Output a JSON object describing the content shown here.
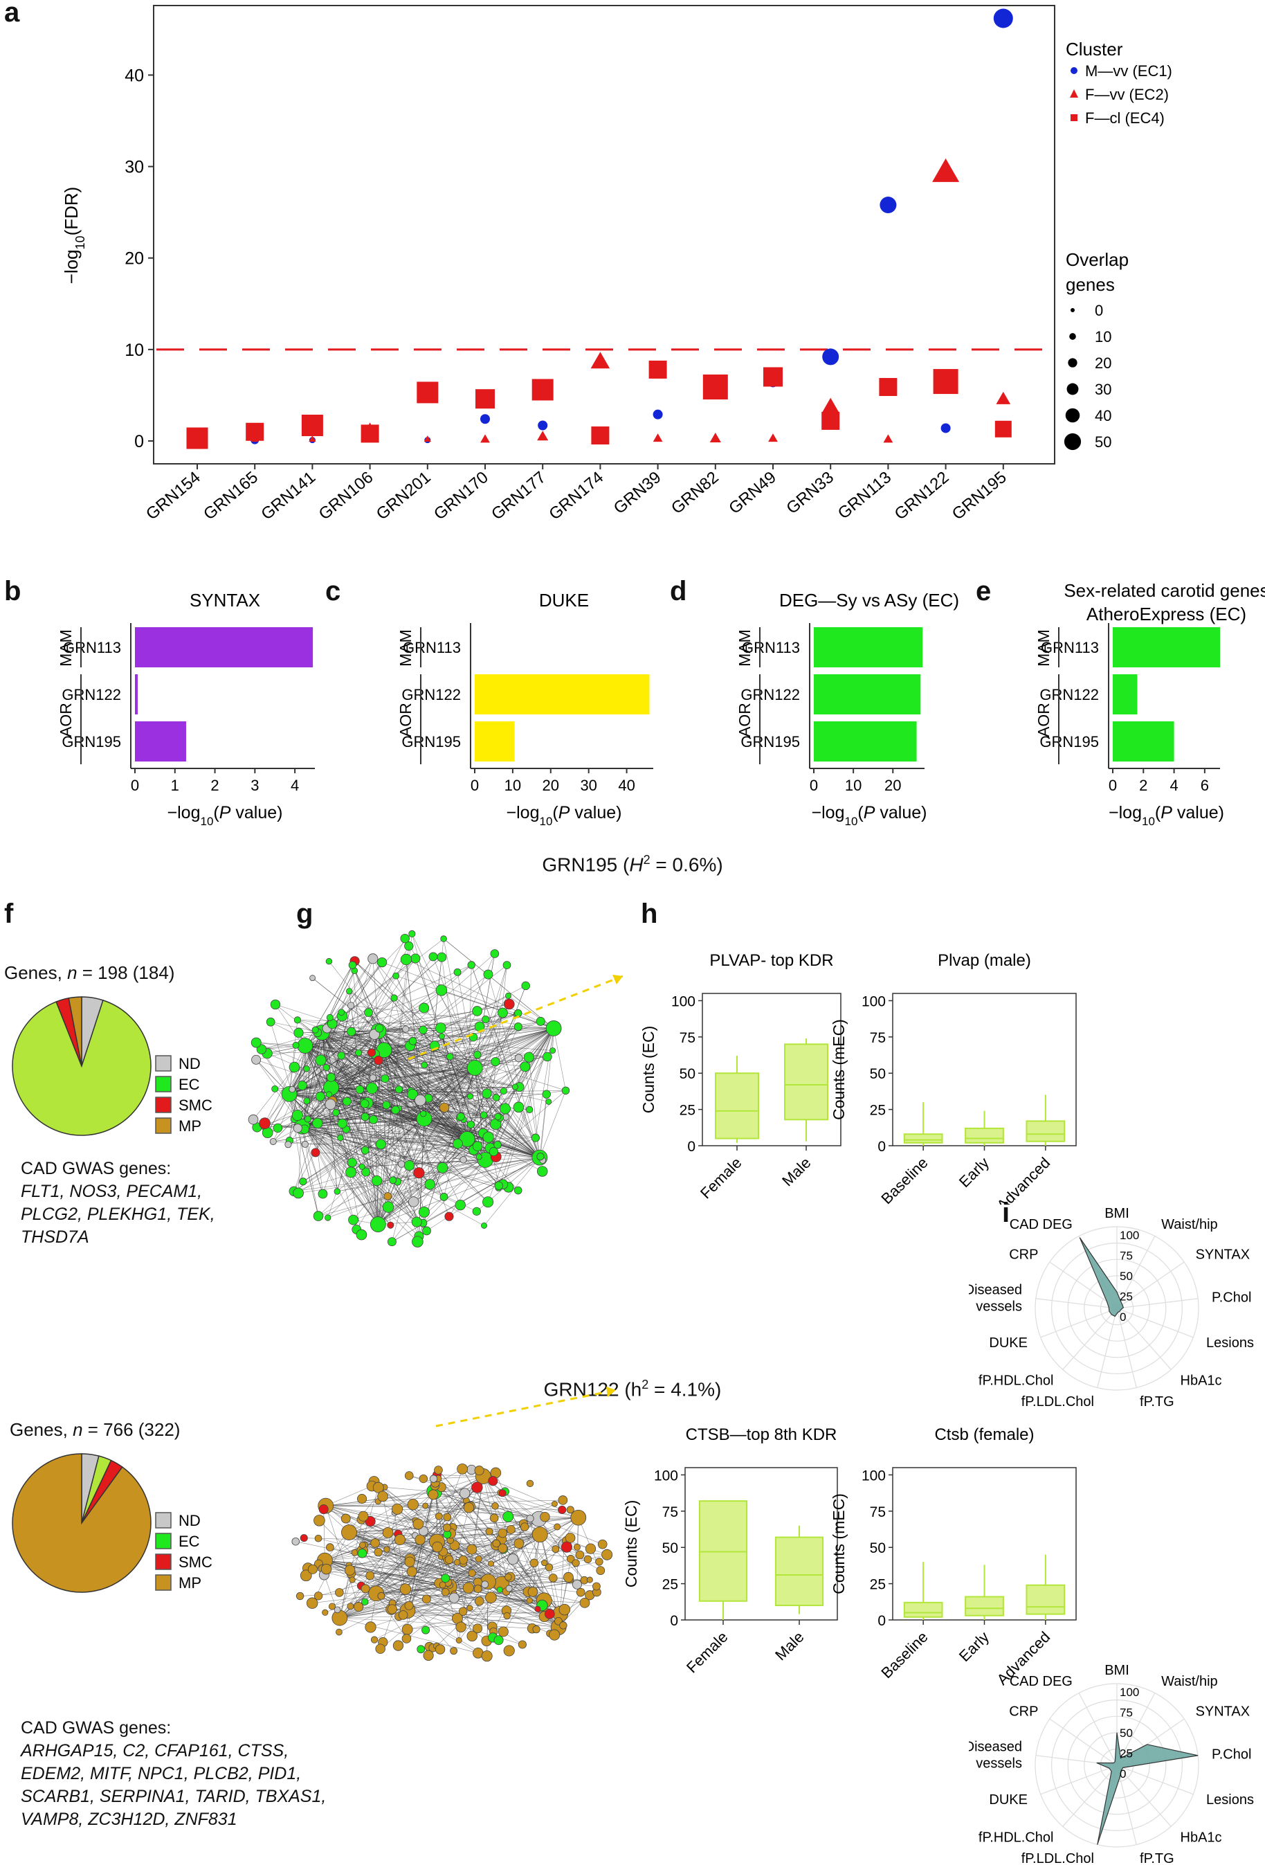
{
  "panels": {
    "a": "a",
    "b": "b",
    "c": "c",
    "d": "d",
    "e": "e",
    "f": "f",
    "g": "g",
    "h": "h",
    "i": "i"
  },
  "colors": {
    "red": "#e31a1c",
    "blue": "#1226d6",
    "purple": "#9b30e0",
    "yellow": "#ffee00",
    "green": "#1fe81f",
    "lime": "#b3e63a",
    "lime_fill": "#d9f28c",
    "brown": "#c89220",
    "grey": "#c8c8c8",
    "radar": "#6faaa4"
  },
  "chart_data": [
    {
      "id": "a",
      "type": "scatter",
      "ylabel": "−log10(FDR)",
      "ylim": [
        0,
        48
      ],
      "yticks": [
        0,
        10,
        20,
        30,
        40
      ],
      "threshold": 10,
      "categories": [
        "GRN154",
        "GRN165",
        "GRN141",
        "GRN106",
        "GRN201",
        "GRN170",
        "GRN177",
        "GRN174",
        "GRN39",
        "GRN82",
        "GRN49",
        "GRN33",
        "GRN113",
        "GRN122",
        "GRN195"
      ],
      "series": [
        {
          "name": "M—vv (EC1)",
          "shape": "circle",
          "color": "#1226d6",
          "values": [
            0.3,
            0.1,
            0.1,
            1.2,
            0.1,
            2.4,
            1.7,
            0.1,
            2.9,
            6.6,
            6.4,
            9.2,
            25.8,
            1.4,
            46.2
          ],
          "sizes": [
            3,
            6,
            3,
            3,
            3,
            8,
            8,
            5,
            8,
            3,
            8,
            18,
            18,
            8,
            22
          ]
        },
        {
          "name": "F—vv (EC2)",
          "shape": "triangle",
          "color": "#e31a1c",
          "values": [
            0.2,
            0.2,
            0.2,
            1.4,
            0.2,
            0.2,
            0.5,
            8.7,
            0.3,
            0.3,
            0.3,
            3.8,
            0.2,
            29.4,
            4.6
          ],
          "sizes": [
            3,
            3,
            3,
            8,
            3,
            6,
            8,
            18,
            6,
            8,
            6,
            15,
            6,
            28,
            12
          ]
        },
        {
          "name": "F—cl (EC4)",
          "shape": "square",
          "color": "#e31a1c",
          "values": [
            0.3,
            1.0,
            1.7,
            0.8,
            5.3,
            4.6,
            5.6,
            0.6,
            7.8,
            5.9,
            7.0,
            2.2,
            5.9,
            6.5,
            1.3
          ],
          "sizes": [
            25,
            20,
            25,
            20,
            25,
            22,
            25,
            20,
            20,
            30,
            22,
            20,
            20,
            30,
            18
          ]
        }
      ],
      "legend_cluster_title": "Cluster",
      "legend_overlap_title_1": "Overlap",
      "legend_overlap_title_2": "genes",
      "legend_overlap_values": [
        0,
        10,
        20,
        30,
        40,
        50
      ]
    },
    {
      "id": "b",
      "type": "bar",
      "title": "SYNTAX",
      "xlabel": "−log10(P value)",
      "xlim": [
        0,
        4.5
      ],
      "xticks": [
        0,
        1,
        2,
        3,
        4
      ],
      "categories": [
        "GRN113",
        "GRN122",
        "GRN195"
      ],
      "values": [
        4.45,
        0.07,
        1.28
      ],
      "groups": [
        "MAM",
        "AOR"
      ],
      "color": "#9b30e0"
    },
    {
      "id": "c",
      "type": "bar",
      "title": "DUKE",
      "xlabel": "−log10(P value)",
      "xlim": [
        0,
        47
      ],
      "xticks": [
        0,
        10,
        20,
        30,
        40
      ],
      "categories": [
        "GRN113",
        "GRN122",
        "GRN195"
      ],
      "values": [
        0,
        46,
        10.5
      ],
      "groups": [
        "MAM",
        "AOR"
      ],
      "color": "#ffee00"
    },
    {
      "id": "d",
      "type": "bar",
      "title": "DEG—Sy vs ASy (EC)",
      "xlabel": "−log10(P value)",
      "xlim": [
        0,
        28
      ],
      "xticks": [
        0,
        10,
        20
      ],
      "categories": [
        "GRN113",
        "GRN122",
        "GRN195"
      ],
      "values": [
        27.5,
        27,
        26
      ],
      "groups": [
        "MAM",
        "AOR"
      ],
      "color": "#1fe81f"
    },
    {
      "id": "e",
      "type": "bar",
      "title": "Sex-related carotid genes",
      "subtitle": "AtheroExpress (EC)",
      "xlabel": "−log10(P value)",
      "xlim": [
        0,
        7
      ],
      "xticks": [
        0,
        2,
        4,
        6
      ],
      "categories": [
        "GRN113",
        "GRN122",
        "GRN195"
      ],
      "values": [
        7,
        1.6,
        4.0
      ],
      "groups": [
        "MAM",
        "AOR"
      ],
      "color": "#1fe81f"
    },
    {
      "id": "f1",
      "type": "pie",
      "labels": [
        "ND",
        "EC",
        "SMC",
        "MP"
      ],
      "values": [
        5,
        89,
        3,
        3
      ]
    },
    {
      "id": "f2",
      "type": "pie",
      "labels": [
        "ND",
        "EC",
        "SMC",
        "MP"
      ],
      "values": [
        4,
        3,
        3,
        90
      ]
    },
    {
      "id": "h1",
      "type": "box",
      "title": "PLVAP- top KDR",
      "ylabel": "Counts (EC)",
      "ylim": [
        0,
        105
      ],
      "yticks": [
        0,
        25,
        50,
        75,
        100
      ],
      "categories": [
        "Female",
        "Male"
      ],
      "boxes": [
        {
          "min": 2,
          "q1": 5,
          "med": 24,
          "q3": 50,
          "max": 62
        },
        {
          "min": 3,
          "q1": 18,
          "med": 42,
          "q3": 70,
          "max": 74
        }
      ]
    },
    {
      "id": "h2",
      "type": "box",
      "title": "Plvap (male)",
      "ylabel": "Counts (mEC)",
      "ylim": [
        0,
        105
      ],
      "yticks": [
        0,
        25,
        50,
        75,
        100
      ],
      "categories": [
        "Baseline",
        "Early",
        "Advanced"
      ],
      "boxes": [
        {
          "min": 0,
          "q1": 2,
          "med": 4,
          "q3": 8,
          "max": 30
        },
        {
          "min": 0,
          "q1": 2,
          "med": 5,
          "q3": 12,
          "max": 24
        },
        {
          "min": 0,
          "q1": 3,
          "med": 8,
          "q3": 17,
          "max": 35
        }
      ]
    },
    {
      "id": "h3",
      "type": "box",
      "title": "CTSB—top 8th KDR",
      "ylabel": "Counts (EC)",
      "ylim": [
        0,
        105
      ],
      "yticks": [
        0,
        25,
        50,
        75,
        100
      ],
      "categories": [
        "Female",
        "Male"
      ],
      "boxes": [
        {
          "min": 0,
          "q1": 13,
          "med": 47,
          "q3": 82,
          "max": 82
        },
        {
          "min": 4,
          "q1": 10,
          "med": 31,
          "q3": 57,
          "max": 65
        }
      ]
    },
    {
      "id": "h4",
      "type": "box",
      "title": "Ctsb (female)",
      "ylabel": "Counts (mEC)",
      "ylim": [
        0,
        105
      ],
      "yticks": [
        0,
        25,
        50,
        75,
        100
      ],
      "categories": [
        "Baseline",
        "Early",
        "Advanced"
      ],
      "boxes": [
        {
          "min": 0,
          "q1": 2,
          "med": 5,
          "q3": 12,
          "max": 40
        },
        {
          "min": 0,
          "q1": 3,
          "med": 8,
          "q3": 16,
          "max": 38
        },
        {
          "min": 0,
          "q1": 4,
          "med": 9,
          "q3": 24,
          "max": 45
        }
      ]
    },
    {
      "id": "i1",
      "type": "radar",
      "rticks": [
        0,
        25,
        50,
        75,
        100
      ],
      "axes": [
        "BMI",
        "Waist/hip",
        "SYNTAX",
        "P.Chol",
        "Lesions",
        "HbA1c",
        "fP.TG",
        "fP.LDL.Chol",
        "fP.HDL.Chol",
        "DUKE",
        "Diseased vessels",
        "CRP",
        "CAD DEG"
      ],
      "values": [
        20,
        10,
        8,
        8,
        5,
        5,
        5,
        10,
        10,
        10,
        10,
        15,
        98
      ]
    },
    {
      "id": "i2",
      "type": "radar",
      "rticks": [
        0,
        25,
        50,
        75,
        100
      ],
      "axes": [
        "BMI",
        "Waist/hip",
        "SYNTAX",
        "P.Chol",
        "Lesions",
        "HbA1c",
        "fP.TG",
        "fP.LDL.Chol",
        "fP.HDL.Chol",
        "DUKE",
        "Diseased vessels",
        "CRP",
        "CAD DEG"
      ],
      "values": [
        40,
        10,
        45,
        100,
        8,
        8,
        15,
        100,
        10,
        10,
        25,
        5,
        5
      ]
    }
  ],
  "text": {
    "grn195_title_pre": "GRN195 (",
    "grn195_title_H": "H",
    "grn195_title_post": " = 0.6%)",
    "grn122_title": "GRN122 (h",
    "grn122_title_post": " = 4.1%)",
    "sup2": "2",
    "genes1_pre": "Genes, ",
    "genes1_n": "n",
    "genes1_post": " = 198 (184)",
    "genes2_pre": "Genes, ",
    "genes2_n": "n",
    "genes2_post": " = 766 (322)",
    "cad_title": "CAD GWAS genes:",
    "cad1": [
      "FLT1, NOS3, PECAM1,",
      "PLCG2, PLEKHG1, TEK,",
      "THSD7A"
    ],
    "cad2": [
      "ARHGAP15, C2, CFAP161, CTSS,",
      "EDEM2, MITF, NPC1, PLCB2, PID1,",
      "SCARB1, SERPINA1, TARID, TBXAS1,",
      "VAMP8, ZC3H12D, ZNF831"
    ]
  }
}
